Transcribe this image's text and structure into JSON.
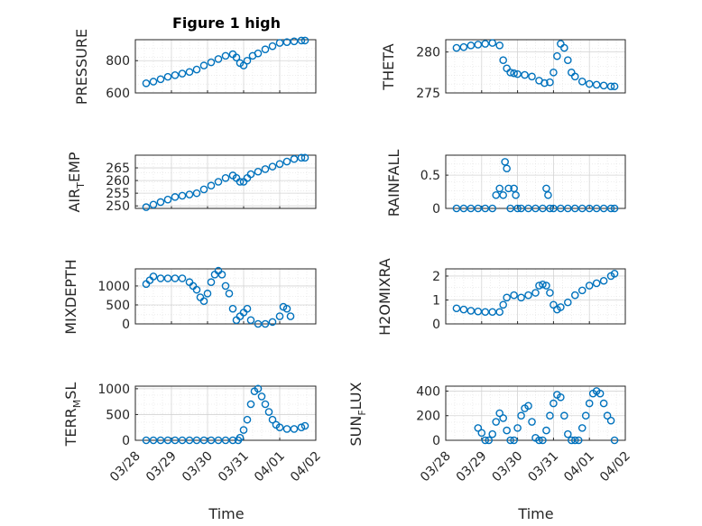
{
  "chart_data": [
    {
      "type": "scatter",
      "title": "Figure 1 high",
      "ylabel": "PRESSURE",
      "ylim": [
        600,
        930
      ],
      "yticks": [
        600,
        800
      ],
      "xlim": [
        0,
        5
      ],
      "xticklabels": [
        "03/28",
        "03/29",
        "03/30",
        "03/31",
        "04/01",
        "04/02"
      ],
      "xlabel": "",
      "grid": true,
      "x": [
        0.3,
        0.5,
        0.7,
        0.9,
        1.1,
        1.3,
        1.5,
        1.7,
        1.9,
        2.1,
        2.3,
        2.5,
        2.7,
        2.8,
        2.9,
        3.0,
        3.1,
        3.25,
        3.4,
        3.6,
        3.8,
        4.0,
        4.2,
        4.4,
        4.6,
        4.7
      ],
      "values": [
        660,
        670,
        685,
        700,
        710,
        720,
        730,
        745,
        770,
        790,
        810,
        830,
        840,
        820,
        785,
        770,
        800,
        830,
        845,
        870,
        890,
        910,
        915,
        920,
        925,
        925
      ]
    },
    {
      "type": "scatter",
      "ylabel": "THETA",
      "ylim": [
        275,
        281.5
      ],
      "yticks": [
        275,
        280
      ],
      "xlim": [
        0,
        5
      ],
      "xticklabels": [
        "03/28",
        "03/29",
        "03/30",
        "03/31",
        "04/01",
        "04/02"
      ],
      "xlabel": "",
      "grid": true,
      "x": [
        0.3,
        0.5,
        0.7,
        0.9,
        1.1,
        1.3,
        1.5,
        1.6,
        1.7,
        1.8,
        1.9,
        2.0,
        2.2,
        2.4,
        2.6,
        2.75,
        2.9,
        3.0,
        3.1,
        3.2,
        3.3,
        3.4,
        3.5,
        3.6,
        3.8,
        4.0,
        4.2,
        4.4,
        4.6,
        4.7
      ],
      "values": [
        280.5,
        280.6,
        280.8,
        280.9,
        281.0,
        281.1,
        280.8,
        279.0,
        278.0,
        277.5,
        277.4,
        277.3,
        277.2,
        277.0,
        276.5,
        276.2,
        276.3,
        277.5,
        279.5,
        281.0,
        280.5,
        279.0,
        277.5,
        277.0,
        276.4,
        276.1,
        276.0,
        275.9,
        275.8,
        275.8
      ]
    },
    {
      "type": "scatter",
      "ylabel": "AIR_TEMP",
      "ylim": [
        249,
        270
      ],
      "yticks": [
        250,
        255,
        260,
        265
      ],
      "xlim": [
        0,
        5
      ],
      "xticklabels": [
        "03/28",
        "03/29",
        "03/30",
        "03/31",
        "04/01",
        "04/02"
      ],
      "xlabel": "",
      "grid": true,
      "x": [
        0.3,
        0.5,
        0.7,
        0.9,
        1.1,
        1.3,
        1.5,
        1.7,
        1.9,
        2.1,
        2.3,
        2.5,
        2.7,
        2.8,
        2.9,
        3.0,
        3.1,
        3.2,
        3.4,
        3.6,
        3.8,
        4.0,
        4.2,
        4.4,
        4.6,
        4.7
      ],
      "values": [
        249.5,
        250.5,
        251.5,
        252.5,
        253.5,
        254.0,
        254.5,
        255.0,
        256.5,
        258.0,
        259.5,
        261.0,
        262.0,
        261.0,
        259.5,
        259.5,
        261.0,
        262.5,
        263.5,
        264.5,
        265.5,
        266.5,
        267.5,
        268.5,
        269.0,
        269.0
      ]
    },
    {
      "type": "scatter",
      "ylabel": "RAINFALL",
      "ylim": [
        0,
        0.8
      ],
      "yticks": [
        0,
        0.5
      ],
      "xlim": [
        0,
        5
      ],
      "xticklabels": [
        "03/28",
        "03/29",
        "03/30",
        "03/31",
        "04/01",
        "04/02"
      ],
      "xlabel": "",
      "grid": true,
      "x": [
        0.3,
        0.5,
        0.7,
        0.9,
        1.1,
        1.3,
        1.4,
        1.5,
        1.6,
        1.65,
        1.7,
        1.75,
        1.8,
        1.9,
        1.95,
        2.0,
        2.1,
        2.3,
        2.5,
        2.7,
        2.8,
        2.85,
        2.9,
        3.0,
        3.2,
        3.4,
        3.6,
        3.8,
        4.0,
        4.2,
        4.4,
        4.6,
        4.7
      ],
      "values": [
        0,
        0,
        0,
        0,
        0,
        0,
        0.2,
        0.3,
        0.2,
        0.7,
        0.6,
        0.3,
        0,
        0.3,
        0.2,
        0,
        0,
        0,
        0,
        0,
        0.3,
        0.2,
        0,
        0,
        0,
        0,
        0,
        0,
        0,
        0,
        0,
        0,
        0
      ]
    },
    {
      "type": "scatter",
      "ylabel": "MIXDEPTH",
      "ylim": [
        0,
        1450
      ],
      "yticks": [
        0,
        500,
        1000
      ],
      "xlim": [
        0,
        5
      ],
      "xticklabels": [
        "03/28",
        "03/29",
        "03/30",
        "03/31",
        "04/01",
        "04/02"
      ],
      "xlabel": "",
      "grid": true,
      "x": [
        0.3,
        0.4,
        0.5,
        0.7,
        0.9,
        1.1,
        1.3,
        1.5,
        1.6,
        1.7,
        1.8,
        1.9,
        2.0,
        2.1,
        2.2,
        2.3,
        2.4,
        2.5,
        2.6,
        2.7,
        2.8,
        2.9,
        3.0,
        3.1,
        3.2,
        3.4,
        3.6,
        3.8,
        4.0,
        4.1,
        4.2,
        4.3
      ],
      "values": [
        1050,
        1150,
        1250,
        1200,
        1200,
        1200,
        1200,
        1100,
        1000,
        900,
        700,
        600,
        800,
        1100,
        1300,
        1400,
        1300,
        1000,
        800,
        400,
        100,
        200,
        300,
        400,
        100,
        0,
        0,
        50,
        200,
        450,
        400,
        200
      ]
    },
    {
      "type": "scatter",
      "ylabel": "H2OMIXRA",
      "ylim": [
        0,
        2.3
      ],
      "yticks": [
        0,
        1,
        2
      ],
      "xlim": [
        0,
        5
      ],
      "xticklabels": [
        "03/28",
        "03/29",
        "03/30",
        "03/31",
        "04/01",
        "04/02"
      ],
      "xlabel": "",
      "grid": true,
      "x": [
        0.3,
        0.5,
        0.7,
        0.9,
        1.1,
        1.3,
        1.5,
        1.6,
        1.7,
        1.9,
        2.1,
        2.3,
        2.5,
        2.6,
        2.7,
        2.8,
        2.9,
        3.0,
        3.1,
        3.2,
        3.4,
        3.6,
        3.8,
        4.0,
        4.2,
        4.4,
        4.6,
        4.7
      ],
      "values": [
        0.65,
        0.6,
        0.55,
        0.52,
        0.5,
        0.5,
        0.5,
        0.8,
        1.1,
        1.2,
        1.1,
        1.2,
        1.3,
        1.6,
        1.65,
        1.6,
        1.3,
        0.8,
        0.6,
        0.7,
        0.9,
        1.2,
        1.4,
        1.6,
        1.7,
        1.8,
        2.0,
        2.1
      ]
    },
    {
      "type": "scatter",
      "ylabel": "TERR_MSL",
      "ylim": [
        0,
        1050
      ],
      "yticks": [
        0,
        500,
        1000
      ],
      "xlim": [
        0,
        5
      ],
      "xticklabels": [
        "03/28",
        "03/29",
        "03/30",
        "03/31",
        "04/01",
        "04/02"
      ],
      "xlabel": "Time",
      "grid": true,
      "x": [
        0.3,
        0.5,
        0.7,
        0.9,
        1.1,
        1.3,
        1.5,
        1.7,
        1.9,
        2.1,
        2.3,
        2.5,
        2.7,
        2.85,
        2.9,
        3.0,
        3.1,
        3.2,
        3.3,
        3.4,
        3.5,
        3.6,
        3.7,
        3.8,
        3.9,
        4.0,
        4.2,
        4.4,
        4.6,
        4.7
      ],
      "values": [
        0,
        0,
        0,
        0,
        0,
        0,
        0,
        0,
        0,
        0,
        0,
        0,
        0,
        0,
        50,
        200,
        400,
        700,
        950,
        1000,
        850,
        700,
        550,
        400,
        300,
        250,
        220,
        220,
        250,
        280
      ]
    },
    {
      "type": "scatter",
      "ylabel": "SUN_FLUX",
      "ylim": [
        0,
        440
      ],
      "yticks": [
        0,
        200,
        400
      ],
      "xlim": [
        0,
        5
      ],
      "xticklabels": [
        "03/28",
        "03/29",
        "03/30",
        "03/31",
        "04/01",
        "04/02"
      ],
      "xlabel": "Time",
      "grid": true,
      "x": [
        0.9,
        1.0,
        1.1,
        1.2,
        1.3,
        1.4,
        1.5,
        1.6,
        1.7,
        1.8,
        1.9,
        2.0,
        2.1,
        2.2,
        2.3,
        2.4,
        2.5,
        2.6,
        2.7,
        2.8,
        2.9,
        3.0,
        3.1,
        3.2,
        3.3,
        3.4,
        3.5,
        3.6,
        3.7,
        3.8,
        3.9,
        4.0,
        4.1,
        4.2,
        4.3,
        4.4,
        4.5,
        4.6,
        4.7
      ],
      "values": [
        100,
        60,
        0,
        0,
        50,
        150,
        220,
        180,
        80,
        0,
        0,
        100,
        200,
        260,
        280,
        150,
        20,
        0,
        0,
        80,
        200,
        300,
        370,
        350,
        200,
        50,
        0,
        0,
        0,
        100,
        200,
        300,
        380,
        400,
        380,
        300,
        200,
        160,
        0
      ]
    }
  ],
  "labels": {
    "title": "Figure 1 high",
    "ylab0_main": "PRESSURE",
    "ylab1_main": "THETA",
    "ylab2_main": "AIR",
    "ylab2_sub": "T",
    "ylab2_tail": "EMP",
    "ylab3_main": "RAINFALL",
    "ylab4_main": "MIXDEPTH",
    "ylab5_main": "H2OMIXRA",
    "ylab6_main": "TERR",
    "ylab6_sub": "M",
    "ylab6_tail": "SL",
    "ylab7_main": "SUN",
    "ylab7_sub": "F",
    "ylab7_tail": "LUX",
    "xlabel": "Time"
  }
}
